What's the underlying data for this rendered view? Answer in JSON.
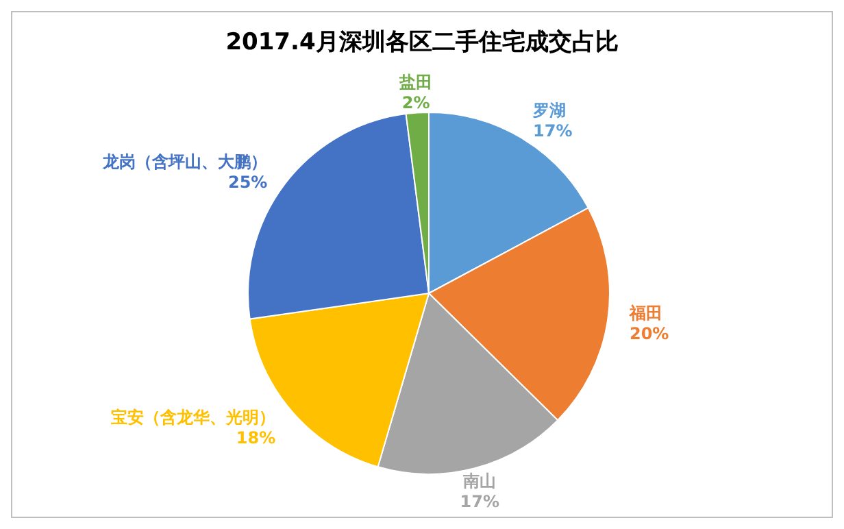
{
  "chart_data": {
    "type": "pie",
    "title": "2017.4月深圳各区二手住宅成交占比",
    "categories": [
      "罗湖",
      "福田",
      "南山",
      "宝安（含龙华、光明）",
      "龙岗（含坪山、大鹏）",
      "盐田"
    ],
    "values": [
      17,
      20,
      17,
      18,
      25,
      2
    ],
    "value_labels": [
      "17%",
      "20%",
      "17%",
      "18%",
      "25%",
      "2%"
    ],
    "colors": [
      "#5b9bd5",
      "#ed7d31",
      "#a5a5a5",
      "#ffc000",
      "#4472c4",
      "#70ad47"
    ],
    "legend": false
  }
}
